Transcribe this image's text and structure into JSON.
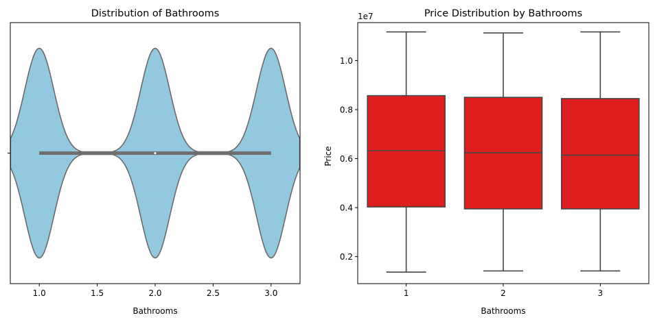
{
  "chart_data": [
    {
      "type": "violin",
      "title": "Distribution of Bathrooms",
      "xlabel": "Bathrooms",
      "ylabel": "",
      "xlim": [
        0.75,
        3.25
      ],
      "xticks": [
        1.0,
        1.5,
        2.0,
        2.5,
        3.0
      ],
      "xtick_labels": [
        "1.0",
        "1.5",
        "2.0",
        "2.5",
        "3.0"
      ],
      "ytick_labels": [
        ""
      ],
      "orientation": "horizontal",
      "color": "#93c9e0",
      "edge_color": "#6a6a6a",
      "modes": [
        1,
        2,
        3
      ],
      "min": 1,
      "max": 3,
      "median": 2,
      "q1": 1,
      "q3": 3,
      "grid": false
    },
    {
      "type": "box",
      "title": "Price Distribution by Bathrooms",
      "xlabel": "Bathrooms",
      "ylabel": "Price",
      "y_offset_label": "1e7",
      "categories": [
        "1",
        "2",
        "3"
      ],
      "yticks": [
        0.2,
        0.4,
        0.6,
        0.8,
        1.0
      ],
      "ytick_labels": [
        "0.2",
        "0.4",
        "0.6",
        "0.8",
        "1.0"
      ],
      "ylim": [
        0.09,
        1.155
      ],
      "color": "#df1f1f",
      "edge_color": "#454545",
      "boxes": [
        {
          "category": "1",
          "whisker_low": 0.137,
          "q1": 0.403,
          "median": 0.633,
          "q3": 0.857,
          "whisker_high": 1.117
        },
        {
          "category": "2",
          "whisker_low": 0.142,
          "q1": 0.395,
          "median": 0.624,
          "q3": 0.85,
          "whisker_high": 1.113
        },
        {
          "category": "3",
          "whisker_low": 0.142,
          "q1": 0.395,
          "median": 0.614,
          "q3": 0.845,
          "whisker_high": 1.117
        }
      ],
      "grid": false
    }
  ]
}
